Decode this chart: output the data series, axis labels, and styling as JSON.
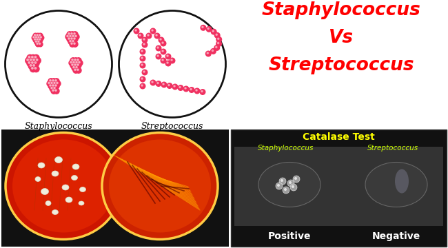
{
  "title_line1": "Staphylococcus",
  "title_line2": "Vs",
  "title_line3": "Streptococcus",
  "title_color": "#ff0000",
  "label_staph": "Staphylococcus",
  "label_strep": "Streptococcus",
  "catalase_title": "Catalase Test",
  "catalase_title_color": "#ffff00",
  "catalase_staph_label": "Staphylococcus",
  "catalase_strep_label": "Streptococcus",
  "catalase_label_color": "#ccff00",
  "positive_label": "Positive",
  "negative_label": "Negative",
  "positive_negative_color": "#ffffff",
  "bg_color": "#ffffff",
  "catalase_bg": "#111111",
  "oval_outline_color": "#111111",
  "bacteria_color": "#f03060",
  "agar_bg": "#111111",
  "agar_left_color": "#cc2200",
  "agar_right_color": "#cc2200"
}
